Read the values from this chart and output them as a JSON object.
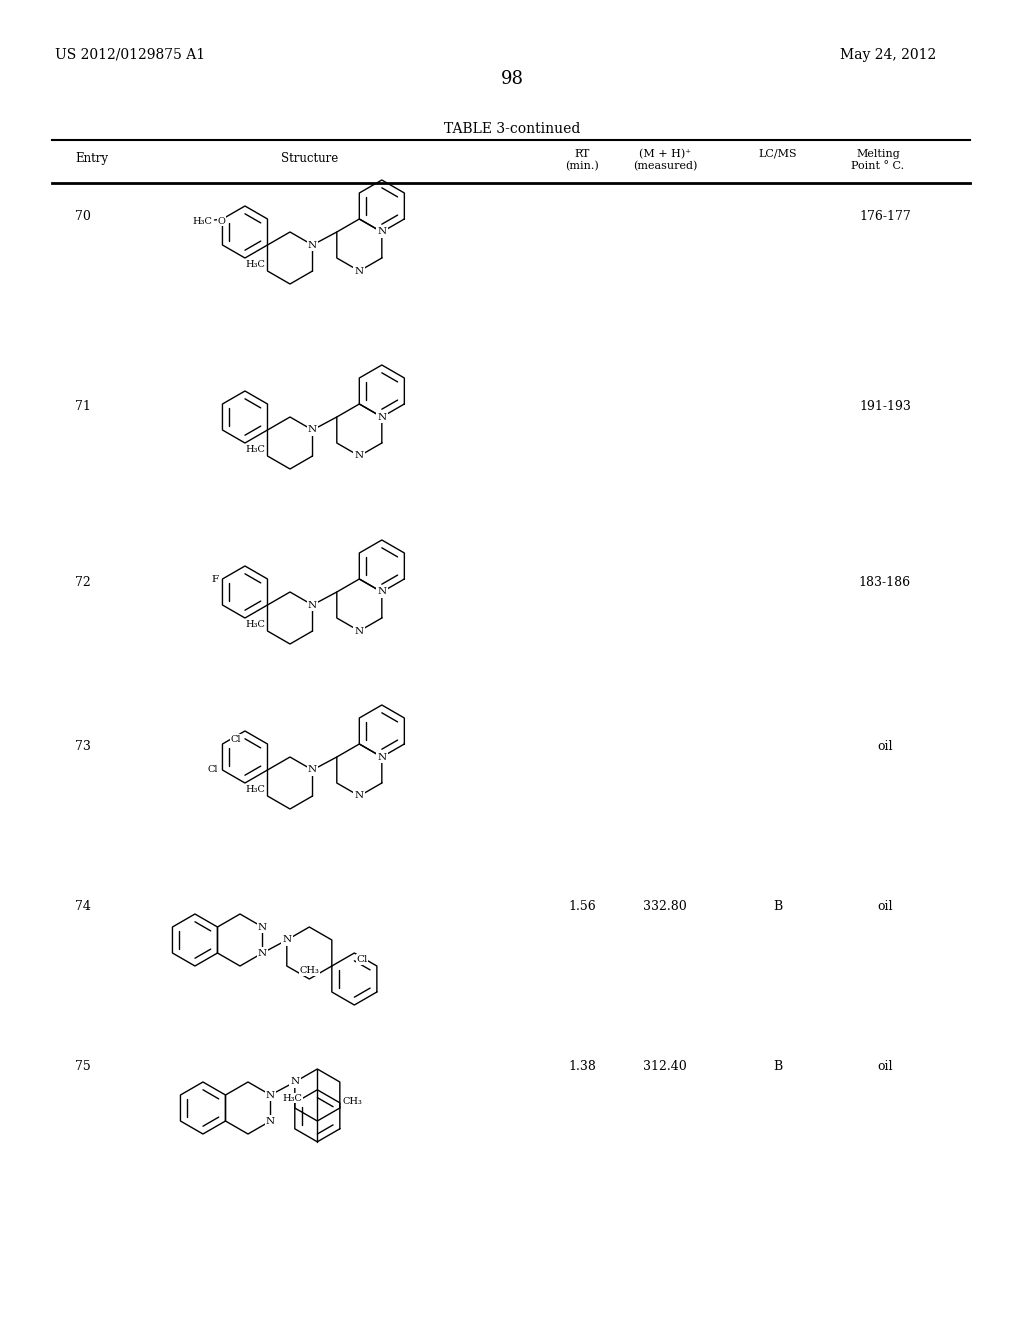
{
  "page_number": "98",
  "patent_number": "US 2012/0129875 A1",
  "patent_date": "May 24, 2012",
  "table_title": "TABLE 3-continued",
  "entries": [
    {
      "entry": "70",
      "rt": "",
      "mh": "",
      "lcms": "",
      "mp": "176-177"
    },
    {
      "entry": "71",
      "rt": "",
      "mh": "",
      "lcms": "",
      "mp": "191-193"
    },
    {
      "entry": "72",
      "rt": "",
      "mh": "",
      "lcms": "",
      "mp": "183-186"
    },
    {
      "entry": "73",
      "rt": "",
      "mh": "",
      "lcms": "",
      "mp": "oil"
    },
    {
      "entry": "74",
      "rt": "1.56",
      "mh": "332.80",
      "lcms": "B",
      "mp": "oil"
    },
    {
      "entry": "75",
      "rt": "1.38",
      "mh": "312.40",
      "lcms": "B",
      "mp": "oil"
    }
  ],
  "background_color": "#ffffff",
  "text_color": "#000000"
}
